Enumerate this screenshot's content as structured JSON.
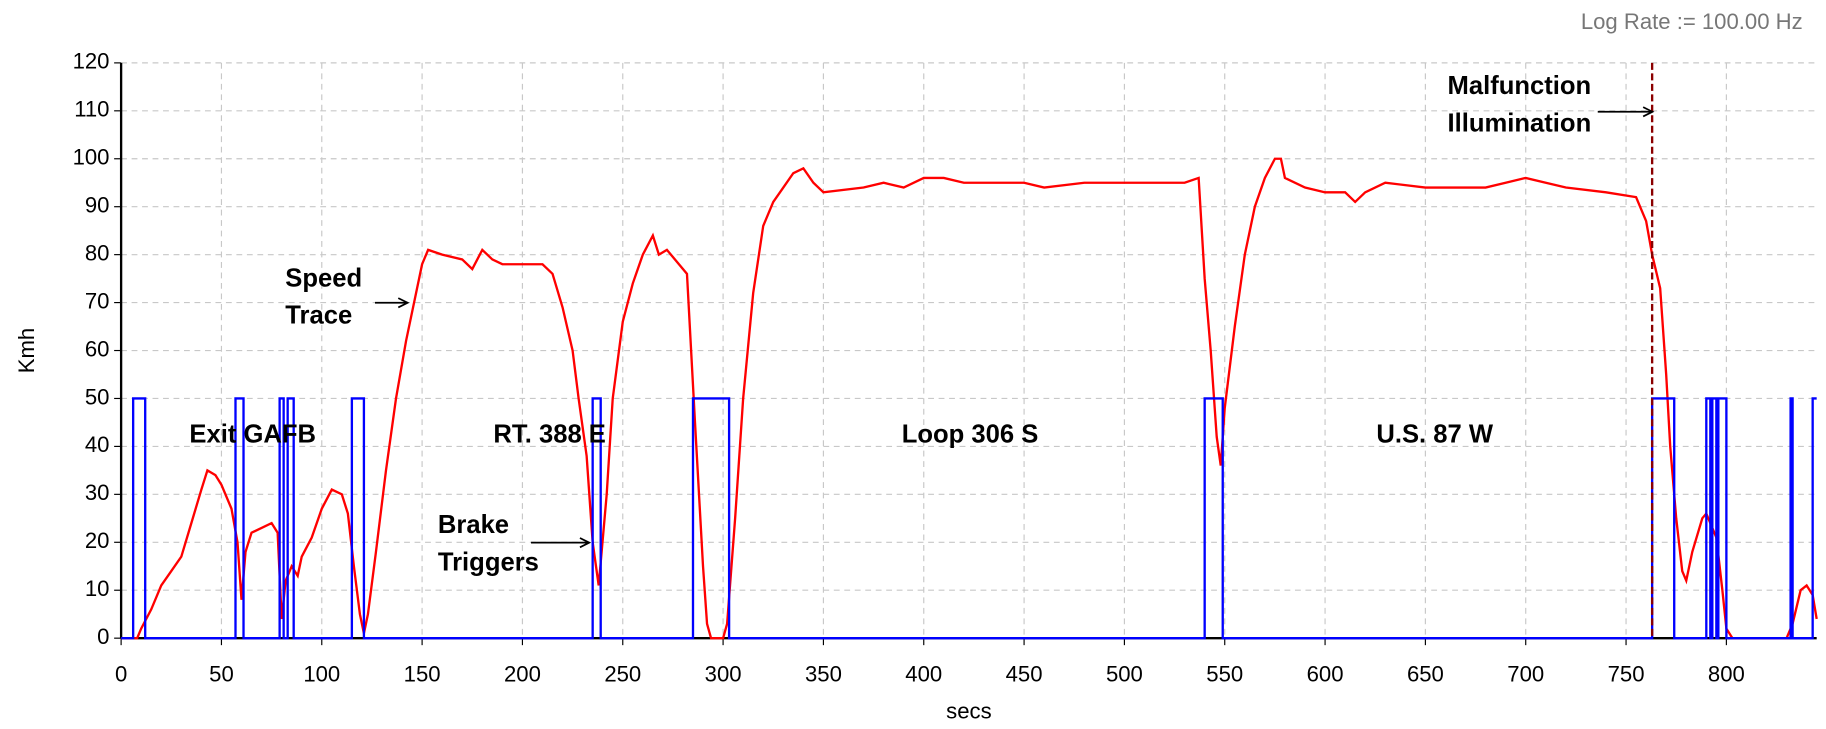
{
  "chart_data": {
    "type": "line",
    "note_top": "Log Rate := 100.00 Hz",
    "x_label": "secs",
    "y_label": "Kmh",
    "xlim": [
      0,
      845
    ],
    "ylim": [
      0,
      120
    ],
    "xticks": [
      0,
      50,
      100,
      150,
      200,
      250,
      300,
      350,
      400,
      450,
      500,
      550,
      600,
      650,
      700,
      750,
      800
    ],
    "yticks": [
      0,
      10,
      20,
      30,
      40,
      50,
      60,
      70,
      80,
      90,
      100,
      110,
      120
    ],
    "grid": true,
    "marker_x": 763,
    "marker_color": "#8b0000",
    "annotations": [
      {
        "lines": [
          "Exit GAFB"
        ]
      },
      {
        "lines": [
          "RT. 388 E"
        ]
      },
      {
        "lines": [
          "Loop 306 S"
        ]
      },
      {
        "lines": [
          "U.S. 87 W"
        ]
      },
      {
        "lines": [
          "Speed",
          "Trace"
        ]
      },
      {
        "lines": [
          "Brake",
          "Triggers"
        ]
      },
      {
        "lines": [
          "Malfunction",
          "Illumination"
        ]
      }
    ],
    "series": [
      {
        "color": "#ff0000",
        "x": [
          0,
          8,
          10,
          15,
          20,
          25,
          30,
          35,
          40,
          43,
          47,
          50,
          55,
          58,
          60,
          62,
          65,
          70,
          75,
          78,
          80,
          82,
          85,
          88,
          90,
          95,
          100,
          105,
          110,
          113,
          116,
          119,
          121,
          123,
          127,
          132,
          137,
          142,
          147,
          150,
          153,
          160,
          170,
          175,
          180,
          185,
          190,
          200,
          210,
          215,
          220,
          225,
          228,
          232,
          235,
          238,
          242,
          245,
          250,
          255,
          260,
          265,
          268,
          272,
          278,
          282,
          286,
          290,
          292,
          294,
          300,
          302,
          306,
          310,
          315,
          320,
          325,
          330,
          335,
          340,
          345,
          350,
          370,
          380,
          390,
          400,
          410,
          420,
          450,
          460,
          480,
          500,
          530,
          537,
          540,
          543,
          546,
          548,
          550,
          555,
          560,
          565,
          570,
          575,
          578,
          580,
          590,
          600,
          610,
          615,
          620,
          630,
          650,
          680,
          690,
          700,
          710,
          720,
          740,
          755,
          760,
          763,
          767,
          770,
          772,
          775,
          778,
          780,
          783,
          788,
          790,
          795,
          798,
          800,
          803,
          830,
          833,
          837,
          840,
          843,
          845
        ],
        "values": [
          0,
          0,
          2,
          6,
          11,
          14,
          17,
          24,
          31,
          35,
          34,
          32,
          27,
          20,
          8,
          18,
          22,
          23,
          24,
          22,
          4,
          12,
          15,
          13,
          17,
          21,
          27,
          31,
          30,
          26,
          15,
          5,
          1,
          5,
          18,
          35,
          50,
          62,
          72,
          78,
          81,
          80,
          79,
          77,
          81,
          79,
          78,
          78,
          78,
          76,
          69,
          60,
          50,
          38,
          20,
          11,
          30,
          50,
          66,
          74,
          80,
          84,
          80,
          81,
          78,
          76,
          45,
          15,
          3,
          0,
          0,
          3,
          25,
          50,
          72,
          86,
          91,
          94,
          97,
          98,
          95,
          93,
          94,
          95,
          94,
          96,
          96,
          95,
          95,
          94,
          95,
          95,
          95,
          96,
          75,
          60,
          42,
          36,
          48,
          65,
          80,
          90,
          96,
          100,
          100,
          96,
          94,
          93,
          93,
          91,
          93,
          95,
          94,
          94,
          95,
          96,
          95,
          94,
          93,
          92,
          87,
          80,
          73,
          55,
          40,
          25,
          14,
          12,
          18,
          25,
          26,
          21,
          10,
          2,
          0,
          0,
          3,
          10,
          11,
          9,
          4
        ]
      },
      {
        "color": "#0000ff",
        "x": [
          0,
          6,
          6,
          12,
          12,
          57,
          57,
          61,
          61,
          79,
          79,
          81,
          81,
          83,
          83,
          86,
          86,
          115,
          115,
          121,
          121,
          235,
          235,
          239,
          239,
          285,
          285,
          303,
          303,
          540,
          540,
          549,
          549,
          763,
          763,
          774,
          774,
          790,
          790,
          792,
          792,
          793,
          793,
          795,
          795,
          796,
          796,
          800,
          800,
          832,
          832,
          833,
          833,
          843,
          843,
          845
        ],
        "values": [
          0,
          0,
          50,
          50,
          0,
          0,
          50,
          50,
          0,
          0,
          50,
          50,
          0,
          0,
          50,
          50,
          0,
          0,
          50,
          50,
          0,
          0,
          50,
          50,
          0,
          0,
          50,
          50,
          0,
          0,
          50,
          50,
          0,
          0,
          50,
          50,
          0,
          0,
          50,
          50,
          0,
          0,
          50,
          50,
          0,
          0,
          50,
          50,
          0,
          0,
          50,
          50,
          0,
          0,
          50,
          50
        ]
      }
    ]
  }
}
